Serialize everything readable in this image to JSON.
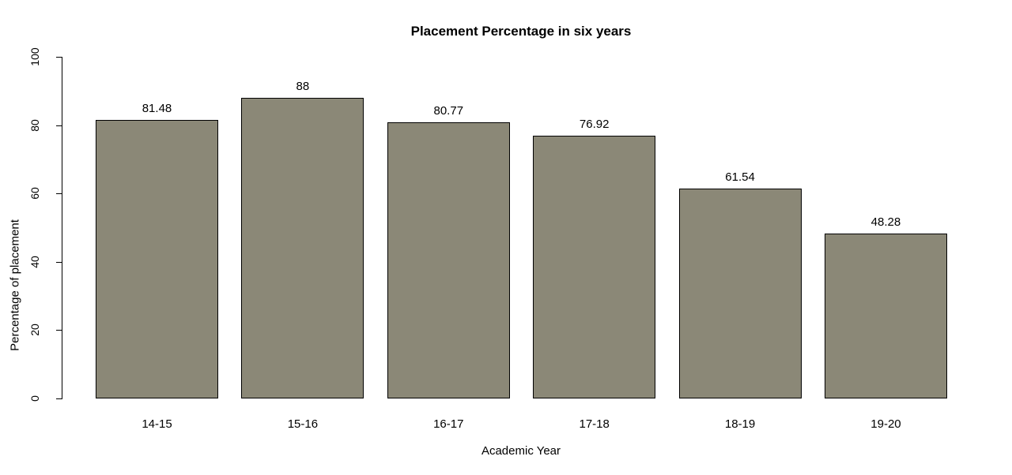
{
  "chart_data": {
    "type": "bar",
    "title": "Placement Percentage in six years",
    "xlabel": "Academic Year",
    "ylabel": "Percentage of placement",
    "categories": [
      "14-15",
      "15-16",
      "16-17",
      "17-18",
      "18-19",
      "19-20"
    ],
    "values": [
      81.48,
      88,
      80.77,
      76.92,
      61.54,
      48.28
    ],
    "value_labels": [
      "81.48",
      "88",
      "80.77",
      "76.92",
      "61.54",
      "48.28"
    ],
    "ylim": [
      0,
      100
    ],
    "yticks": [
      "0",
      "20",
      "40",
      "60",
      "80",
      "100"
    ],
    "grid": false,
    "legend": null,
    "bar_fill_color": "#8b8877",
    "bar_border_color": "#000000",
    "axis_color": "#000000",
    "background_color": "#ffffff"
  }
}
